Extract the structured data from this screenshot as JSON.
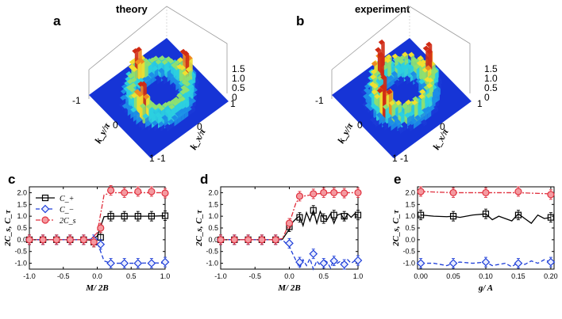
{
  "panels_3d": [
    {
      "label": "a",
      "title": "theory",
      "z_ticks": [
        "1.5",
        "1.0",
        "0.5",
        "0"
      ],
      "ky_ticks": [
        "-1",
        "0",
        "1"
      ],
      "kx_ticks": [
        "-1",
        "0",
        "1"
      ],
      "ky_label": "k_y/π",
      "kx_label": "k_x/π"
    },
    {
      "label": "b",
      "title": "experiment",
      "z_ticks": [
        "1.5",
        "1.0",
        "0.5",
        "0"
      ],
      "ky_ticks": [
        "-1",
        "0",
        "1"
      ],
      "kx_ticks": [
        "-1",
        "0",
        "1"
      ],
      "ky_label": "k_y/π",
      "kx_label": "k_x/π"
    }
  ],
  "chart_data": [
    {
      "label": "c",
      "type": "line",
      "xlabel": "M/ 2B",
      "ylabel": "2C_s, C_τ",
      "xlim": [
        -1.0,
        1.0
      ],
      "ylim": [
        -1.25,
        2.25
      ],
      "xticks": [
        "-1.0",
        "-0.5",
        "0.0",
        "0.5",
        "1.0"
      ],
      "yticks": [
        "-1.0",
        "-0.5",
        "0.0",
        "0.5",
        "1.0",
        "1.5",
        "2.0"
      ],
      "legend": [
        "C_+",
        "C_−",
        "2C_s"
      ],
      "series": [
        {
          "name": "C_+",
          "color": "#000000",
          "x": [
            -1.0,
            -0.8,
            -0.6,
            -0.4,
            -0.2,
            -0.1,
            0.0,
            0.1,
            0.2,
            0.4,
            0.6,
            0.8,
            1.0
          ],
          "values": [
            0,
            0,
            0,
            0,
            0,
            -0.02,
            0.15,
            0.98,
            1.0,
            1.0,
            1.0,
            1.0,
            1.02
          ],
          "points_x": [
            -1.0,
            -0.8,
            -0.6,
            -0.4,
            -0.2,
            -0.05,
            0.05,
            0.2,
            0.4,
            0.6,
            0.8,
            1.0
          ],
          "points_y": [
            0,
            0,
            0,
            0,
            0,
            -0.1,
            0.1,
            1.0,
            1.0,
            1.0,
            1.0,
            1.02
          ]
        },
        {
          "name": "C_−",
          "color": "#1f3fd8",
          "x": [
            -1.0,
            -0.8,
            -0.6,
            -0.4,
            -0.2,
            -0.1,
            0.0,
            0.1,
            0.2,
            0.4,
            0.6,
            0.8,
            1.0
          ],
          "values": [
            0,
            0,
            0,
            0,
            0,
            0.02,
            -0.1,
            -0.9,
            -1.0,
            -1.0,
            -1.0,
            -0.98,
            -1.0
          ],
          "points_x": [
            -1.0,
            -0.8,
            -0.6,
            -0.4,
            -0.2,
            -0.05,
            0.05,
            0.2,
            0.4,
            0.6,
            0.8,
            1.0
          ],
          "points_y": [
            0,
            0,
            0,
            0,
            0,
            0.0,
            -0.2,
            -1.0,
            -1.0,
            -1.0,
            -1.0,
            -0.95
          ]
        },
        {
          "name": "2C_s",
          "color": "#e0303e",
          "x": [
            -1.0,
            -0.8,
            -0.6,
            -0.4,
            -0.2,
            -0.1,
            0.0,
            0.1,
            0.2,
            0.4,
            0.6,
            0.8,
            1.0
          ],
          "values": [
            0,
            0,
            0,
            0,
            0,
            0.0,
            0.3,
            1.9,
            2.0,
            2.0,
            2.0,
            2.0,
            2.0
          ],
          "points_x": [
            -1.0,
            -0.8,
            -0.6,
            -0.4,
            -0.2,
            -0.05,
            0.05,
            0.2,
            0.4,
            0.6,
            0.8,
            1.0
          ],
          "points_y": [
            0,
            0,
            0,
            0,
            0,
            -0.1,
            0.5,
            2.1,
            2.0,
            2.05,
            2.05,
            1.98
          ]
        }
      ]
    },
    {
      "label": "d",
      "type": "line",
      "xlabel": "M/ 2B",
      "ylabel": "2C_s, C_τ",
      "xlim": [
        -1.0,
        1.0
      ],
      "ylim": [
        -1.25,
        2.25
      ],
      "xticks": [
        "-1.0",
        "-0.5",
        "0.0",
        "0.5",
        "1.0"
      ],
      "yticks": [
        "-1.0",
        "-0.5",
        "0.0",
        "0.5",
        "1.0",
        "1.5",
        "2.0"
      ],
      "legend": [],
      "series": [
        {
          "name": "C_+",
          "color": "#000000",
          "x": [
            -1.0,
            -0.8,
            -0.6,
            -0.4,
            -0.2,
            -0.1,
            0.0,
            0.05,
            0.1,
            0.15,
            0.2,
            0.25,
            0.3,
            0.35,
            0.4,
            0.45,
            0.5,
            0.55,
            0.6,
            0.65,
            0.7,
            0.75,
            0.8,
            0.85,
            0.9,
            0.95,
            1.0
          ],
          "values": [
            0,
            0,
            0,
            0,
            0,
            0.02,
            0.45,
            0.75,
            0.9,
            1.0,
            0.6,
            1.15,
            0.8,
            1.25,
            0.7,
            1.2,
            0.9,
            0.85,
            1.1,
            0.7,
            1.05,
            1.1,
            0.85,
            1.1,
            0.95,
            1.1,
            1.05
          ],
          "points_x": [
            -1.0,
            -0.8,
            -0.6,
            -0.4,
            -0.2,
            0.0,
            0.15,
            0.35,
            0.5,
            0.65,
            0.8,
            1.0
          ],
          "points_y": [
            0,
            0,
            0,
            0,
            0,
            0.55,
            0.95,
            1.25,
            0.9,
            1.05,
            1.0,
            1.05
          ]
        },
        {
          "name": "C_−",
          "color": "#1f3fd8",
          "x": [
            -1.0,
            -0.8,
            -0.6,
            -0.4,
            -0.2,
            -0.1,
            0.0,
            0.05,
            0.1,
            0.15,
            0.2,
            0.25,
            0.3,
            0.35,
            0.4,
            0.45,
            0.5,
            0.55,
            0.6,
            0.65,
            0.7,
            0.75,
            0.8,
            0.85,
            0.9,
            0.95,
            1.0
          ],
          "values": [
            0,
            0,
            0,
            0,
            0,
            0.0,
            -0.3,
            -0.6,
            -0.9,
            -1.2,
            -0.85,
            -1.1,
            -0.8,
            -1.25,
            -0.9,
            -1.1,
            -0.85,
            -0.95,
            -1.2,
            -0.8,
            -1.0,
            -0.9,
            -1.15,
            -0.85,
            -1.0,
            -0.9,
            -0.9
          ],
          "points_x": [
            -1.0,
            -0.8,
            -0.6,
            -0.4,
            -0.2,
            0.0,
            0.15,
            0.35,
            0.5,
            0.65,
            0.8,
            1.0
          ],
          "points_y": [
            0,
            0,
            0,
            0,
            0,
            -0.15,
            -0.95,
            -0.6,
            -1.0,
            -0.9,
            -1.05,
            -0.88
          ]
        },
        {
          "name": "2C_s",
          "color": "#e0303e",
          "x": [
            -1.0,
            -0.8,
            -0.6,
            -0.4,
            -0.2,
            -0.1,
            0.0,
            0.1,
            0.2,
            0.4,
            0.6,
            0.8,
            1.0
          ],
          "values": [
            0,
            0,
            0,
            0,
            0,
            0.05,
            0.7,
            1.6,
            1.85,
            1.95,
            2.0,
            2.0,
            2.0
          ],
          "points_x": [
            -1.0,
            -0.8,
            -0.6,
            -0.4,
            -0.2,
            0.0,
            0.15,
            0.35,
            0.5,
            0.65,
            0.8,
            1.0
          ],
          "points_y": [
            0,
            0,
            0,
            0,
            0,
            0.7,
            1.85,
            1.95,
            2.0,
            2.0,
            1.98,
            2.0
          ]
        }
      ]
    },
    {
      "label": "e",
      "type": "line",
      "xlabel": "g/ A",
      "ylabel": "2C_s, C_τ",
      "xlim": [
        -0.005,
        0.205
      ],
      "ylim": [
        -1.25,
        2.25
      ],
      "xticks": [
        "0.00",
        "0.05",
        "0.10",
        "0.15",
        "0.20"
      ],
      "yticks": [
        "-1.0",
        "-0.5",
        "0.0",
        "0.5",
        "1.0",
        "1.5",
        "2.0"
      ],
      "legend": [],
      "series": [
        {
          "name": "C_+",
          "color": "#000000",
          "x": [
            0.0,
            0.02,
            0.04,
            0.05,
            0.06,
            0.08,
            0.1,
            0.11,
            0.12,
            0.13,
            0.14,
            0.15,
            0.16,
            0.17,
            0.18,
            0.19,
            0.2
          ],
          "values": [
            1.05,
            1.0,
            0.98,
            1.0,
            0.95,
            1.05,
            1.1,
            0.85,
            1.0,
            0.9,
            0.8,
            1.1,
            0.9,
            0.7,
            1.05,
            0.9,
            0.95
          ],
          "points_x": [
            0.0,
            0.05,
            0.1,
            0.15,
            0.2
          ],
          "points_y": [
            1.05,
            1.0,
            1.1,
            1.05,
            0.95
          ]
        },
        {
          "name": "C_−",
          "color": "#1f3fd8",
          "x": [
            0.0,
            0.02,
            0.04,
            0.05,
            0.06,
            0.08,
            0.1,
            0.11,
            0.12,
            0.13,
            0.14,
            0.15,
            0.16,
            0.17,
            0.18,
            0.19,
            0.2
          ],
          "values": [
            -1.0,
            -1.0,
            -1.1,
            -1.0,
            -0.95,
            -1.0,
            -0.95,
            -1.1,
            -1.05,
            -1.0,
            -1.15,
            -0.95,
            -1.05,
            -0.9,
            -1.0,
            -0.85,
            -0.95
          ],
          "points_x": [
            0.0,
            0.05,
            0.1,
            0.15,
            0.2
          ],
          "points_y": [
            -1.0,
            -1.0,
            -0.95,
            -1.0,
            -0.95
          ]
        },
        {
          "name": "2C_s",
          "color": "#e0303e",
          "x": [
            0.0,
            0.05,
            0.1,
            0.15,
            0.2
          ],
          "values": [
            2.05,
            2.0,
            2.0,
            2.0,
            1.95
          ],
          "points_x": [
            0.0,
            0.05,
            0.1,
            0.15,
            0.2
          ],
          "points_y": [
            2.05,
            2.0,
            2.0,
            2.05,
            1.92
          ]
        }
      ]
    }
  ]
}
